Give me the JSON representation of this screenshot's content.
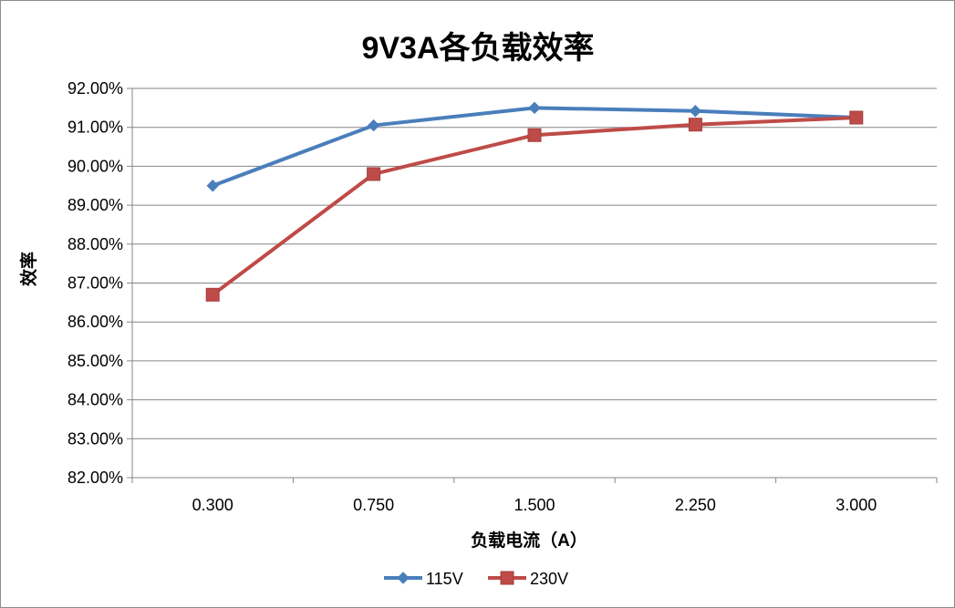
{
  "chart_data": {
    "type": "line",
    "title": "9V3A各负载效率",
    "xlabel": "负载电流（A）",
    "ylabel": "效率",
    "categories": [
      "0.300",
      "0.750",
      "1.500",
      "2.250",
      "3.000"
    ],
    "y_ticks": [
      "82.00%",
      "83.00%",
      "84.00%",
      "85.00%",
      "86.00%",
      "87.00%",
      "88.00%",
      "89.00%",
      "90.00%",
      "91.00%",
      "92.00%"
    ],
    "ylim": [
      82,
      92
    ],
    "grid": true,
    "legend_position": "bottom",
    "series": [
      {
        "name": "115V",
        "values": [
          89.5,
          91.05,
          91.5,
          91.42,
          91.25
        ],
        "color": "#4a7ebb",
        "marker": "diamond"
      },
      {
        "name": "230V",
        "values": [
          86.7,
          89.8,
          90.8,
          91.07,
          91.25
        ],
        "color": "#be4b48",
        "marker": "square"
      }
    ]
  }
}
